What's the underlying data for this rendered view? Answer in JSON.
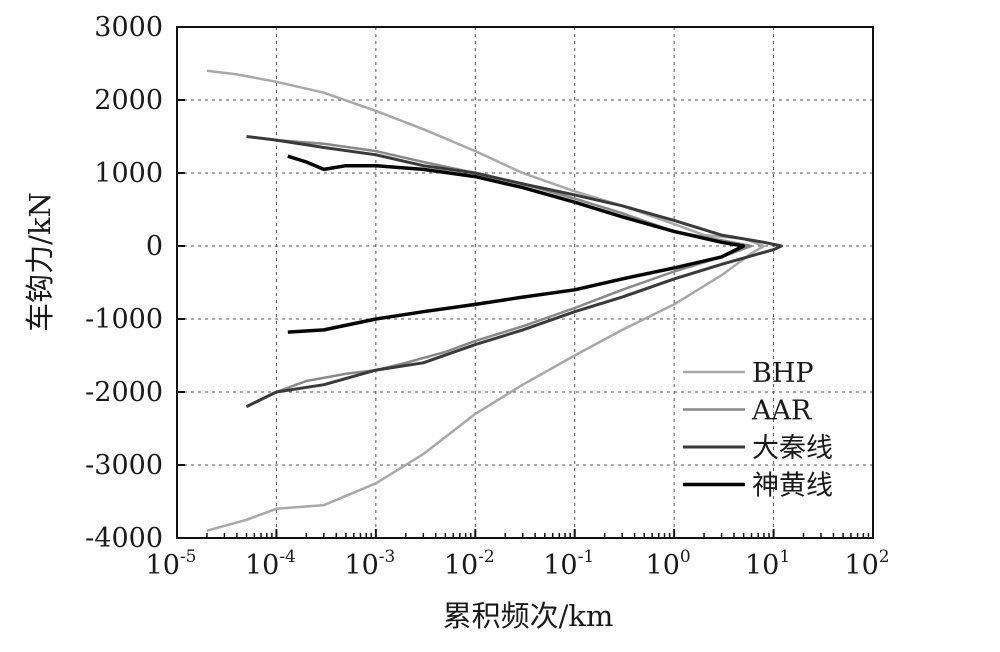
{
  "chart_data": {
    "type": "line",
    "xlabel": "累积频次/km",
    "ylabel": "车钩力/kN",
    "x_scale": "log",
    "xlim": [
      1e-05,
      100
    ],
    "ylim": [
      -4000,
      3000
    ],
    "x_ticks": [
      {
        "base": "10",
        "exp": "-5"
      },
      {
        "base": "10",
        "exp": "-4"
      },
      {
        "base": "10",
        "exp": "-3"
      },
      {
        "base": "10",
        "exp": "-2"
      },
      {
        "base": "10",
        "exp": "-1"
      },
      {
        "base": "10",
        "exp": "0"
      },
      {
        "base": "10",
        "exp": "1"
      },
      {
        "base": "10",
        "exp": "2"
      }
    ],
    "y_ticks": [
      "3000",
      "2000",
      "1000",
      "0",
      "-1000",
      "-2000",
      "-3000",
      "-4000"
    ],
    "grid": true,
    "legend_position": "bottom-right",
    "series": [
      {
        "name": "BHP",
        "color": "#a8a8a8",
        "points": [
          [
            2e-05,
            -3900
          ],
          [
            5e-05,
            -3750
          ],
          [
            0.0001,
            -3600
          ],
          [
            0.0003,
            -3550
          ],
          [
            0.001,
            -3250
          ],
          [
            0.003,
            -2850
          ],
          [
            0.01,
            -2300
          ],
          [
            0.03,
            -1900
          ],
          [
            0.1,
            -1500
          ],
          [
            0.3,
            -1150
          ],
          [
            1,
            -800
          ],
          [
            3,
            -400
          ],
          [
            6,
            -100
          ],
          [
            8,
            0
          ],
          [
            5,
            100
          ],
          [
            2,
            150
          ],
          [
            1,
            300
          ],
          [
            0.3,
            550
          ],
          [
            0.1,
            750
          ],
          [
            0.03,
            1000
          ],
          [
            0.01,
            1300
          ],
          [
            0.003,
            1600
          ],
          [
            0.001,
            1850
          ],
          [
            0.0003,
            2100
          ],
          [
            0.0001,
            2250
          ],
          [
            4e-05,
            2350
          ],
          [
            2e-05,
            2400
          ]
        ]
      },
      {
        "name": "AAR",
        "color": "#888888",
        "points": [
          [
            5e-05,
            -2200
          ],
          [
            0.0001,
            -2000
          ],
          [
            0.0002,
            -1850
          ],
          [
            0.0005,
            -1750
          ],
          [
            0.001,
            -1700
          ],
          [
            0.002,
            -1600
          ],
          [
            0.005,
            -1450
          ],
          [
            0.01,
            -1300
          ],
          [
            0.03,
            -1100
          ],
          [
            0.1,
            -850
          ],
          [
            0.3,
            -600
          ],
          [
            1,
            -350
          ],
          [
            3,
            -150
          ],
          [
            6,
            0
          ],
          [
            3,
            80
          ],
          [
            1,
            200
          ],
          [
            0.3,
            450
          ],
          [
            0.1,
            650
          ],
          [
            0.03,
            850
          ],
          [
            0.01,
            1000
          ],
          [
            0.003,
            1150
          ],
          [
            0.001,
            1300
          ],
          [
            0.0003,
            1400
          ],
          [
            0.0001,
            1450
          ],
          [
            5e-05,
            1500
          ]
        ]
      },
      {
        "name": "大秦线",
        "color": "#3a3a3a",
        "points": [
          [
            5e-05,
            -2200
          ],
          [
            0.0001,
            -2000
          ],
          [
            0.0003,
            -1900
          ],
          [
            0.001,
            -1700
          ],
          [
            0.003,
            -1600
          ],
          [
            0.01,
            -1350
          ],
          [
            0.03,
            -1150
          ],
          [
            0.1,
            -900
          ],
          [
            0.3,
            -700
          ],
          [
            1,
            -450
          ],
          [
            3,
            -250
          ],
          [
            10,
            -50
          ],
          [
            12,
            0
          ],
          [
            8,
            50
          ],
          [
            3,
            150
          ],
          [
            1,
            350
          ],
          [
            0.3,
            550
          ],
          [
            0.1,
            700
          ],
          [
            0.03,
            850
          ],
          [
            0.01,
            1000
          ],
          [
            0.003,
            1100
          ],
          [
            0.001,
            1250
          ],
          [
            0.0003,
            1350
          ],
          [
            0.0001,
            1450
          ],
          [
            5e-05,
            1500
          ]
        ]
      },
      {
        "name": "神黄线",
        "color": "#050505",
        "points": [
          [
            0.00013,
            -1180
          ],
          [
            0.0003,
            -1150
          ],
          [
            0.001,
            -1000
          ],
          [
            0.003,
            -900
          ],
          [
            0.01,
            -800
          ],
          [
            0.03,
            -700
          ],
          [
            0.1,
            -600
          ],
          [
            0.3,
            -450
          ],
          [
            1,
            -300
          ],
          [
            3,
            -150
          ],
          [
            5,
            0
          ],
          [
            3,
            50
          ],
          [
            1,
            200
          ],
          [
            0.3,
            400
          ],
          [
            0.1,
            600
          ],
          [
            0.03,
            800
          ],
          [
            0.01,
            950
          ],
          [
            0.003,
            1050
          ],
          [
            0.001,
            1100
          ],
          [
            0.0005,
            1100
          ],
          [
            0.0003,
            1050
          ],
          [
            0.0002,
            1150
          ],
          [
            0.00013,
            1230
          ]
        ]
      }
    ]
  }
}
